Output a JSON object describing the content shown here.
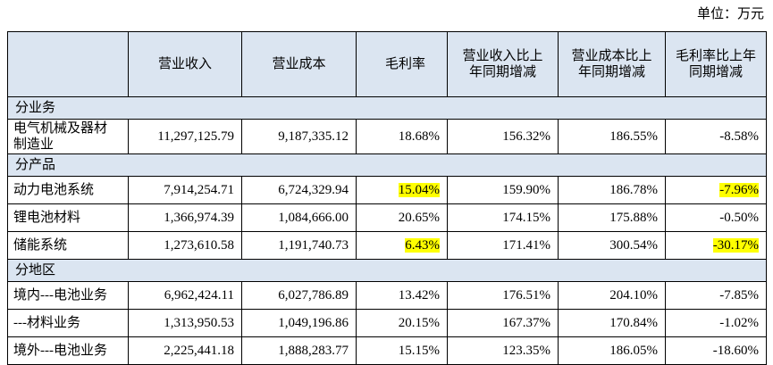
{
  "unit": "单位：万元",
  "table": {
    "header": [
      "",
      "营业收入",
      "营业成本",
      "毛利率",
      "营业收入比上年同期增减",
      "营业成本比上年同期增减",
      "毛利率比上年同期增减"
    ],
    "rows": [
      [
        "分业务"
      ],
      [
        "电气机械及器材制造业",
        "11,297,125.79",
        "9,187,335.12",
        "18.68%",
        "156.32%",
        "186.55%",
        "-8.58%"
      ],
      [
        "分产品"
      ],
      [
        "动力电池系统",
        "7,914,254.71",
        "6,724,329.94",
        "15.04%",
        "159.90%",
        "186.78%",
        "-7.96%"
      ],
      [
        "锂电池材料",
        "1,366,974.39",
        "1,084,666.00",
        "20.65%",
        "174.15%",
        "175.88%",
        "-0.50%"
      ],
      [
        "储能系统",
        "1,273,610.58",
        "1,191,740.73",
        "6.43%",
        "171.41%",
        "300.54%",
        "-30.17%"
      ],
      [
        "分地区"
      ],
      [
        "境内---电池业务",
        "6,962,424.11",
        "6,027,786.89",
        "13.42%",
        "176.51%",
        "204.10%",
        "-7.85%"
      ],
      [
        "---材料业务",
        "1,313,950.53",
        "1,049,196.86",
        "20.15%",
        "167.37%",
        "170.84%",
        "-1.02%"
      ],
      [
        "境外---电池业务",
        "2,225,441.18",
        "1,888,283.77",
        "15.15%",
        "123.35%",
        "186.05%",
        "-18.60%"
      ]
    ]
  }
}
